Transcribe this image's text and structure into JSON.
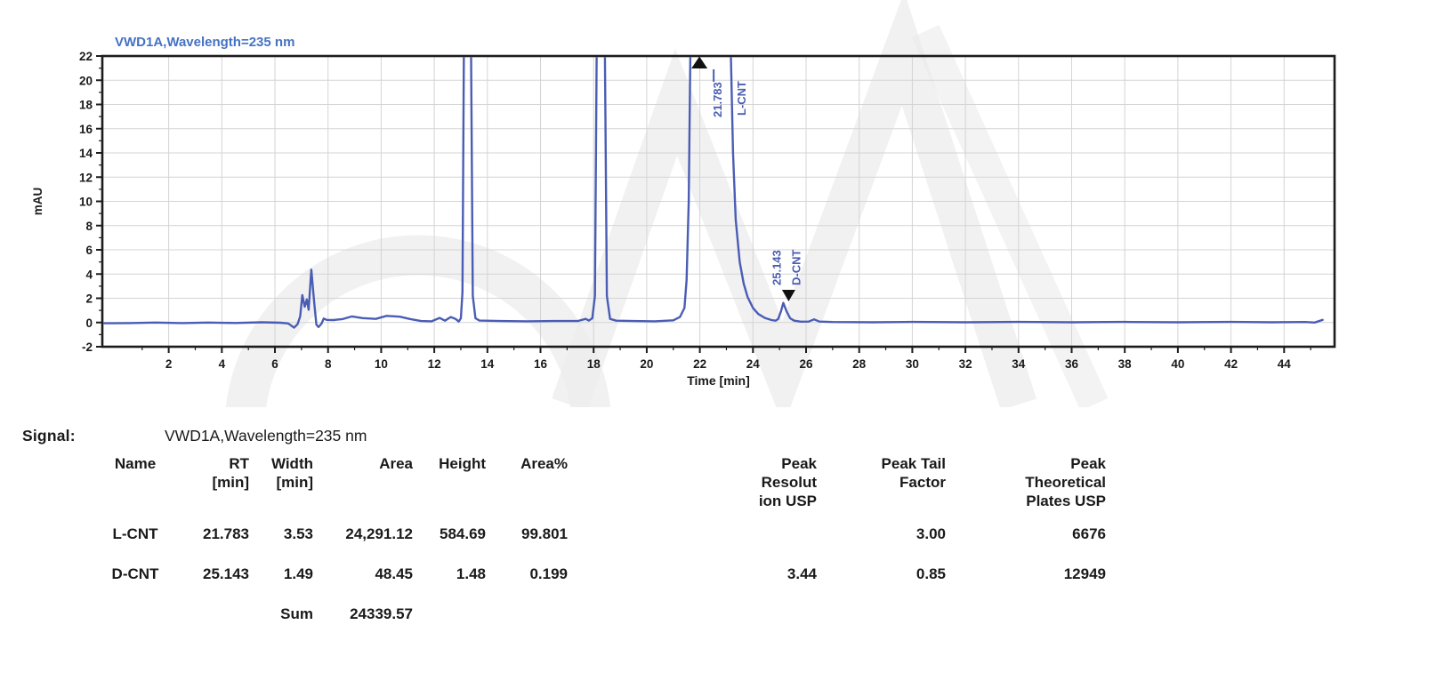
{
  "chart": {
    "title": "VWD1A,Wavelength=235 nm"
  },
  "chart_data": {
    "type": "line",
    "title": "VWD1A,Wavelength=235 nm",
    "xlabel": "Time [min]",
    "ylabel": "mAU",
    "xlim": [
      -0.5,
      45.9
    ],
    "ylim": [
      -2,
      22
    ],
    "x_ticks": [
      2,
      4,
      6,
      8,
      10,
      12,
      14,
      16,
      18,
      20,
      22,
      24,
      26,
      28,
      30,
      32,
      34,
      36,
      38,
      40,
      42,
      44
    ],
    "y_ticks": [
      -2,
      0,
      2,
      4,
      6,
      8,
      10,
      12,
      14,
      16,
      18,
      20,
      22
    ],
    "grid": true,
    "legend_position": "none",
    "peaks": [
      {
        "name": "L-CNT",
        "rt": 21.783,
        "rt_label": "21.783",
        "name_label": "L-CNT",
        "marker": "up",
        "off_scale": true
      },
      {
        "name": "D-CNT",
        "rt": 25.143,
        "rt_label": "25.143",
        "name_label": "D-CNT",
        "marker": "down",
        "apex_mau": 1.6
      }
    ],
    "trace": [
      [
        -0.5,
        -0.06
      ],
      [
        0.5,
        -0.05
      ],
      [
        1.5,
        0.0
      ],
      [
        2.5,
        -0.05
      ],
      [
        3.5,
        0.0
      ],
      [
        4.5,
        -0.04
      ],
      [
        5.5,
        0.02
      ],
      [
        6.2,
        -0.02
      ],
      [
        6.5,
        -0.08
      ],
      [
        6.72,
        -0.42
      ],
      [
        6.85,
        -0.15
      ],
      [
        6.95,
        0.5
      ],
      [
        7.03,
        2.26
      ],
      [
        7.12,
        1.3
      ],
      [
        7.2,
        1.9
      ],
      [
        7.27,
        1.05
      ],
      [
        7.37,
        4.36
      ],
      [
        7.48,
        1.6
      ],
      [
        7.56,
        -0.17
      ],
      [
        7.64,
        -0.38
      ],
      [
        7.75,
        -0.1
      ],
      [
        7.84,
        0.33
      ],
      [
        7.95,
        0.22
      ],
      [
        8.2,
        0.2
      ],
      [
        8.55,
        0.28
      ],
      [
        8.9,
        0.5
      ],
      [
        9.3,
        0.36
      ],
      [
        9.8,
        0.3
      ],
      [
        10.2,
        0.55
      ],
      [
        10.7,
        0.48
      ],
      [
        11.1,
        0.28
      ],
      [
        11.5,
        0.12
      ],
      [
        11.9,
        0.1
      ],
      [
        12.2,
        0.38
      ],
      [
        12.4,
        0.15
      ],
      [
        12.62,
        0.45
      ],
      [
        12.8,
        0.3
      ],
      [
        12.92,
        0.08
      ],
      [
        13.0,
        0.35
      ],
      [
        13.06,
        2.5
      ],
      [
        13.12,
        24
      ],
      [
        13.38,
        24
      ],
      [
        13.45,
        2.2
      ],
      [
        13.55,
        0.35
      ],
      [
        13.7,
        0.16
      ],
      [
        14.5,
        0.12
      ],
      [
        15.5,
        0.1
      ],
      [
        16.5,
        0.12
      ],
      [
        17.4,
        0.12
      ],
      [
        17.7,
        0.3
      ],
      [
        17.82,
        0.16
      ],
      [
        17.95,
        0.35
      ],
      [
        18.05,
        2.2
      ],
      [
        18.12,
        24
      ],
      [
        18.42,
        24
      ],
      [
        18.5,
        2.2
      ],
      [
        18.62,
        0.3
      ],
      [
        18.85,
        0.15
      ],
      [
        19.5,
        0.12
      ],
      [
        20.3,
        0.1
      ],
      [
        21.0,
        0.18
      ],
      [
        21.25,
        0.45
      ],
      [
        21.42,
        1.2
      ],
      [
        21.5,
        3.5
      ],
      [
        21.58,
        10
      ],
      [
        21.65,
        24
      ],
      [
        23.15,
        24
      ],
      [
        23.25,
        14
      ],
      [
        23.35,
        8.5
      ],
      [
        23.5,
        5.0
      ],
      [
        23.65,
        3.2
      ],
      [
        23.8,
        2.1
      ],
      [
        24.0,
        1.2
      ],
      [
        24.2,
        0.7
      ],
      [
        24.45,
        0.38
      ],
      [
        24.7,
        0.2
      ],
      [
        24.85,
        0.15
      ],
      [
        24.95,
        0.3
      ],
      [
        25.06,
        0.95
      ],
      [
        25.143,
        1.62
      ],
      [
        25.26,
        0.95
      ],
      [
        25.4,
        0.35
      ],
      [
        25.55,
        0.15
      ],
      [
        25.8,
        0.07
      ],
      [
        26.1,
        0.08
      ],
      [
        26.3,
        0.26
      ],
      [
        26.5,
        0.08
      ],
      [
        27.0,
        0.04
      ],
      [
        28.5,
        0.02
      ],
      [
        30.0,
        0.05
      ],
      [
        32.0,
        0.02
      ],
      [
        34.0,
        0.05
      ],
      [
        36.0,
        0.02
      ],
      [
        38.0,
        0.05
      ],
      [
        40.0,
        0.02
      ],
      [
        42.0,
        0.05
      ],
      [
        43.5,
        0.02
      ],
      [
        44.8,
        0.04
      ],
      [
        45.15,
        0.0
      ],
      [
        45.45,
        0.22
      ]
    ]
  },
  "colors": {
    "trace": "#4a5db4",
    "title": "#4472c4",
    "annotation": "#4a5db4",
    "grid": "#d4d4d4",
    "axis": "#1c1c1c",
    "text": "#1a1a1a",
    "marker": "#111111",
    "watermark": "#ececec"
  },
  "signal": {
    "label": "Signal:",
    "value": "VWD1A,Wavelength=235 nm"
  },
  "table": {
    "columns": [
      {
        "key": "name",
        "header": "Name",
        "align": "center"
      },
      {
        "key": "rt",
        "header": "RT\n[min]",
        "align": "right"
      },
      {
        "key": "width",
        "header": "Width\n[min]",
        "align": "right"
      },
      {
        "key": "area",
        "header": "Area",
        "align": "right"
      },
      {
        "key": "height",
        "header": "Height",
        "align": "right"
      },
      {
        "key": "areapct",
        "header": "Area%",
        "align": "right"
      },
      {
        "key": "res",
        "header": "Peak\nResolut\nion USP",
        "align": "right"
      },
      {
        "key": "tail",
        "header": "Peak Tail\nFactor",
        "align": "right"
      },
      {
        "key": "plates",
        "header": "Peak\nTheoretical\nPlates USP",
        "align": "right"
      }
    ],
    "rows": [
      {
        "name": "L-CNT",
        "rt": "21.783",
        "width": "3.53",
        "area": "24,291.12",
        "height": "584.69",
        "areapct": "99.801",
        "res": "",
        "tail": "3.00",
        "plates": "6676"
      },
      {
        "name": "D-CNT",
        "rt": "25.143",
        "width": "1.49",
        "area": "48.45",
        "height": "1.48",
        "areapct": "0.199",
        "res": "3.44",
        "tail": "0.85",
        "plates": "12949"
      }
    ],
    "sum": {
      "label": "Sum",
      "area": "24339.57"
    }
  }
}
